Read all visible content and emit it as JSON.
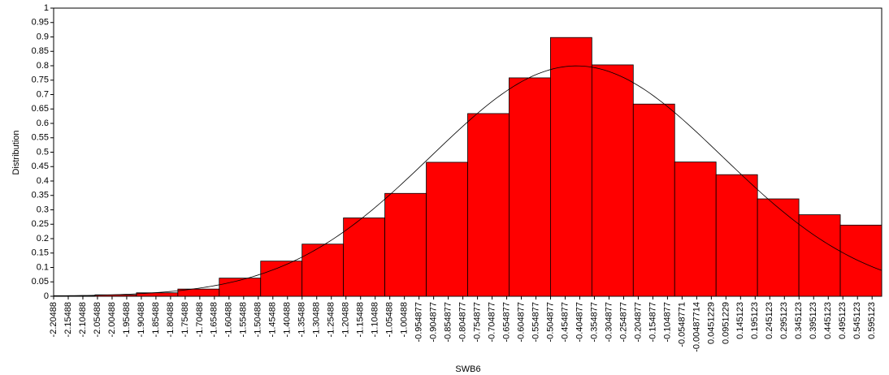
{
  "chart_data": {
    "type": "histogram",
    "xlabel": "SWB6",
    "ylabel": "Distribution",
    "bins": [
      -2.20488,
      -2.06324,
      -1.9216,
      -1.77996,
      -1.63832,
      -1.49668,
      -1.35504,
      -1.2134,
      -1.07176,
      -0.93012,
      -0.78848,
      -0.64684,
      -0.5052,
      -0.36356,
      -0.22192,
      -0.08028,
      0.06136,
      0.203,
      0.34464,
      0.48628,
      0.62792
    ],
    "values": [
      0.002,
      0.005,
      0.012,
      0.025,
      0.063,
      0.122,
      0.181,
      0.272,
      0.357,
      0.465,
      0.634,
      0.758,
      0.898,
      0.803,
      0.667,
      0.466,
      0.422,
      0.338,
      0.283,
      0.247
    ],
    "color": "#ff0000",
    "curve": {
      "mean": -0.416,
      "sd": 0.499
    },
    "xlim": [
      -2.20488,
      0.62792
    ],
    "xticks": [
      -2.20488,
      -2.15488,
      -2.10488,
      -2.05488,
      -2.00488,
      -1.95488,
      -1.90488,
      -1.85488,
      -1.80488,
      -1.75488,
      -1.70488,
      -1.65488,
      -1.60488,
      -1.55488,
      -1.50488,
      -1.45488,
      -1.40488,
      -1.35488,
      -1.30488,
      -1.25488,
      -1.20488,
      -1.15488,
      -1.10488,
      -1.05488,
      -1.00488,
      -0.954877,
      -0.904877,
      -0.854877,
      -0.804877,
      -0.754877,
      -0.704877,
      -0.654877,
      -0.604877,
      -0.554877,
      -0.504877,
      -0.454877,
      -0.404877,
      -0.354877,
      -0.304877,
      -0.254877,
      -0.204877,
      -0.154877,
      -0.104877,
      -0.0548771,
      -0.00487714,
      0.0451229,
      0.0951229,
      0.145123,
      0.195123,
      0.245123,
      0.295123,
      0.345123,
      0.395123,
      0.445123,
      0.495123,
      0.545123,
      0.595123
    ],
    "ylim": [
      0,
      1
    ],
    "yticks": [
      0,
      0.05,
      0.1,
      0.15,
      0.2,
      0.25,
      0.3,
      0.35,
      0.4,
      0.45,
      0.5,
      0.55,
      0.6,
      0.65,
      0.7,
      0.75,
      0.8,
      0.85,
      0.9,
      0.95,
      1
    ],
    "grid": false
  }
}
